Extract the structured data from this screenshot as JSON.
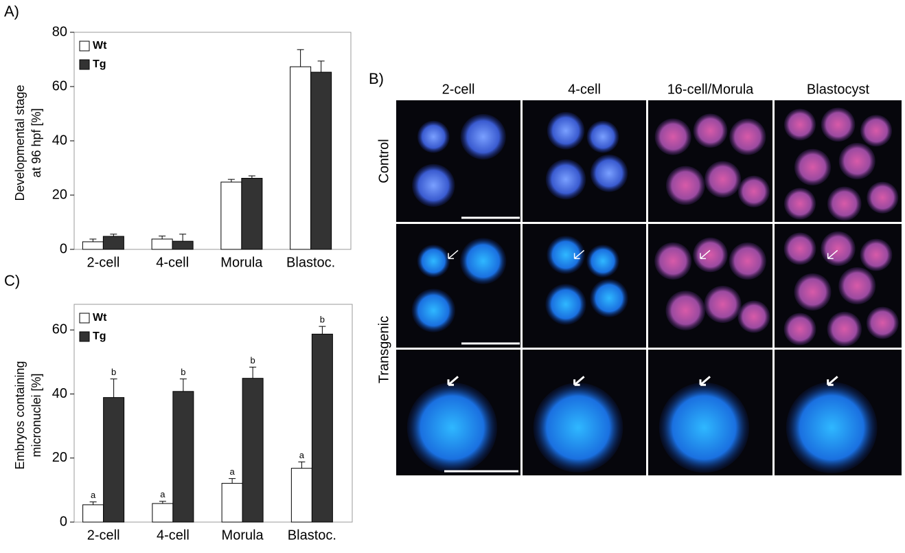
{
  "panels": {
    "a": "A)",
    "b": "B)",
    "c": "C)"
  },
  "micrographs": {
    "columns": [
      "2-cell",
      "4-cell",
      "16-cell/Morula",
      "Blastocyst"
    ],
    "rows": [
      "Control",
      "Transgenic"
    ]
  },
  "chart_data": [
    {
      "type": "bar",
      "ylabel": [
        "Developmental stage",
        "at 96 hpf [%]"
      ],
      "categories": [
        "2-cell",
        "4-cell",
        "Morula",
        "Blastoc."
      ],
      "series": [
        {
          "name": "Wt",
          "color": "#ffffff",
          "values": [
            2.8,
            3.8,
            24.8,
            67.3
          ],
          "errors": [
            1.0,
            1.1,
            1.0,
            6.3
          ]
        },
        {
          "name": "Tg",
          "color": "#333333",
          "values": [
            4.8,
            3.0,
            26.2,
            65.3
          ],
          "errors": [
            0.8,
            2.6,
            0.9,
            4.1
          ]
        }
      ],
      "ylim": [
        0,
        80
      ],
      "yticks": [
        0,
        20,
        40,
        60,
        80
      ],
      "legend": "upper-left"
    },
    {
      "type": "bar",
      "ylabel": [
        "Embryos containing",
        "micronuclei [%]"
      ],
      "categories": [
        "2-cell",
        "4-cell",
        "Morula",
        "Blastoc."
      ],
      "series": [
        {
          "name": "Wt",
          "color": "#ffffff",
          "values": [
            5.4,
            5.8,
            12.1,
            16.8
          ],
          "errors": [
            0.9,
            0.7,
            1.5,
            2.0
          ],
          "labels": [
            "a",
            "a",
            "a",
            "a"
          ]
        },
        {
          "name": "Tg",
          "color": "#333333",
          "values": [
            38.9,
            40.8,
            44.9,
            58.7
          ],
          "errors": [
            5.8,
            3.9,
            3.5,
            2.4
          ],
          "labels": [
            "b",
            "b",
            "b",
            "b"
          ]
        }
      ],
      "ylim": [
        0,
        68
      ],
      "yticks": [
        0,
        20,
        40,
        60
      ],
      "legend": "upper-left"
    }
  ]
}
